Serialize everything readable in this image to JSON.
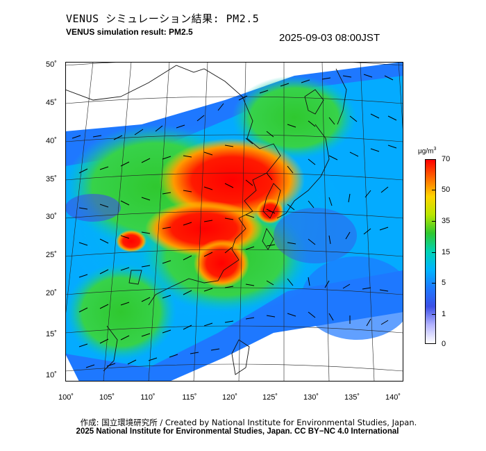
{
  "header": {
    "title_jp": "VENUS シミュレーション結果: PM2.5",
    "title_en": "VENUS simulation result: PM2.5",
    "timestamp": "2025-09-03 08:00JST"
  },
  "map": {
    "lat_labels": [
      "50˚",
      "45˚",
      "40˚",
      "35˚",
      "30˚",
      "25˚",
      "20˚",
      "15˚",
      "10˚"
    ],
    "lon_labels": [
      "100˚",
      "105˚",
      "110˚",
      "115˚",
      "120˚",
      "125˚",
      "130˚",
      "135˚",
      "140˚"
    ],
    "lat_range": [
      9,
      51
    ],
    "lon_range": [
      100,
      141
    ],
    "field": "PM2.5 concentration with wind vectors"
  },
  "colorbar": {
    "unit_base": "μg/m",
    "unit_exp": "3",
    "ticks": [
      "70",
      "50",
      "35",
      "15",
      "5",
      "1",
      "0"
    ],
    "colors": [
      "#ff0000",
      "#ff6a00",
      "#ffd400",
      "#b8e600",
      "#2fc82f",
      "#00d2b4",
      "#00b4ff",
      "#1e78ff",
      "#3c50e6",
      "#b4b4ff",
      "#ffffff"
    ]
  },
  "footer": {
    "credit_line1": "作成: 国立環境研究所 / Created by National Institute for Environmental Studies, Japan.",
    "credit_line2": "2025 National Institute for Environmental Studies, Japan. CC BY−NC 4.0 International"
  }
}
